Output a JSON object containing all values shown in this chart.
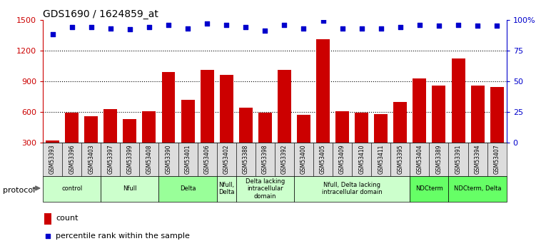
{
  "title": "GDS1690 / 1624859_at",
  "samples": [
    "GSM53393",
    "GSM53396",
    "GSM53403",
    "GSM53397",
    "GSM53399",
    "GSM53408",
    "GSM53390",
    "GSM53401",
    "GSM53406",
    "GSM53402",
    "GSM53388",
    "GSM53398",
    "GSM53392",
    "GSM53400",
    "GSM53405",
    "GSM53409",
    "GSM53410",
    "GSM53411",
    "GSM53395",
    "GSM53404",
    "GSM53389",
    "GSM53391",
    "GSM53394",
    "GSM53407"
  ],
  "counts": [
    320,
    590,
    560,
    630,
    530,
    610,
    990,
    720,
    1010,
    960,
    640,
    590,
    1010,
    570,
    1310,
    610,
    595,
    580,
    700,
    930,
    860,
    1120,
    855,
    840
  ],
  "percentile_ranks": [
    88,
    94,
    94,
    93,
    92,
    94,
    96,
    93,
    97,
    96,
    94,
    91,
    96,
    93,
    99,
    93,
    93,
    93,
    94,
    96,
    95,
    96,
    95,
    95
  ],
  "bar_color": "#cc0000",
  "dot_color": "#0000cc",
  "ylim_left": [
    300,
    1500
  ],
  "ylim_right": [
    0,
    100
  ],
  "yticks_left": [
    300,
    600,
    900,
    1200,
    1500
  ],
  "yticks_right": [
    0,
    25,
    50,
    75,
    100
  ],
  "grid_values": [
    600,
    900,
    1200
  ],
  "protocol_groups": [
    {
      "label": "control",
      "start": 0,
      "end": 3,
      "color": "#ccffcc"
    },
    {
      "label": "Nfull",
      "start": 3,
      "end": 6,
      "color": "#ccffcc"
    },
    {
      "label": "Delta",
      "start": 6,
      "end": 9,
      "color": "#99ff99"
    },
    {
      "label": "Nfull,\nDelta",
      "start": 9,
      "end": 10,
      "color": "#ccffcc"
    },
    {
      "label": "Delta lacking\nintracellular\ndomain",
      "start": 10,
      "end": 13,
      "color": "#ccffcc"
    },
    {
      "label": "Nfull, Delta lacking\nintracellular domain",
      "start": 13,
      "end": 19,
      "color": "#ccffcc"
    },
    {
      "label": "NDCterm",
      "start": 19,
      "end": 21,
      "color": "#66ff66"
    },
    {
      "label": "NDCterm, Delta",
      "start": 21,
      "end": 24,
      "color": "#66ff66"
    }
  ],
  "legend_count_label": "count",
  "legend_pct_label": "percentile rank within the sample",
  "protocol_label": "protocol"
}
